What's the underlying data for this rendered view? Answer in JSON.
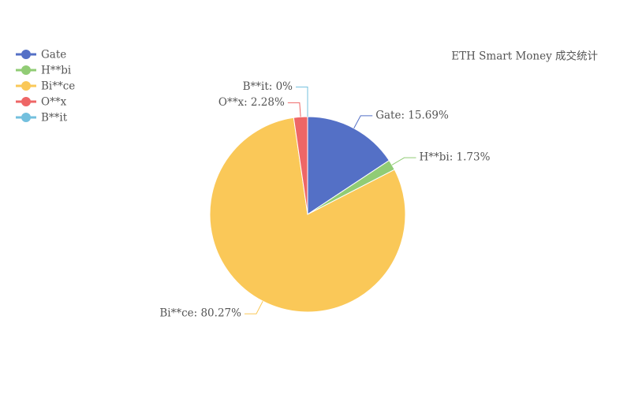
{
  "chart_data": {
    "type": "pie",
    "title": "ETH Smart Money 成交统计",
    "categories": [
      "Gate",
      "H**bi",
      "Bi**ce",
      "O**x",
      "B**it"
    ],
    "values": [
      15.69,
      1.73,
      80.27,
      2.28,
      0
    ],
    "value_labels": [
      "Gate: 15.69%",
      "H**bi: 1.73%",
      "Bi**ce: 80.27%",
      "O**x: 2.28%",
      "B**it: 0%"
    ],
    "colors": [
      "#5470c6",
      "#91cc75",
      "#fac858",
      "#ee6666",
      "#73c0de"
    ],
    "legend": "top-left"
  }
}
